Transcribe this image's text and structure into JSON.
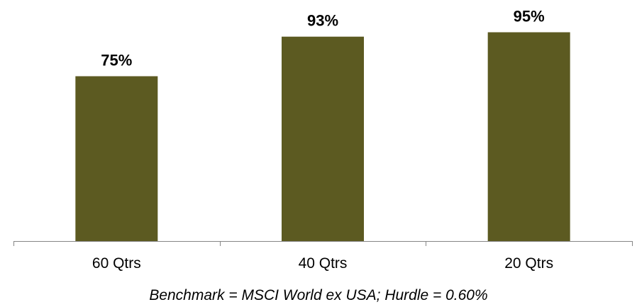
{
  "chart_data": {
    "type": "bar",
    "categories": [
      "60 Qtrs",
      "40 Qtrs",
      "20 Qtrs"
    ],
    "values": [
      75,
      93,
      95
    ],
    "data_labels": [
      "75%",
      "93%",
      "95%"
    ],
    "ylim": [
      0,
      100
    ],
    "bar_color": "#5c5a21",
    "axis_color": "#868686",
    "grid": false,
    "legend": "none",
    "title": "",
    "xlabel": "",
    "ylabel": ""
  },
  "footnote": "Benchmark = MSCI World ex USA; Hurdle = 0.60%"
}
